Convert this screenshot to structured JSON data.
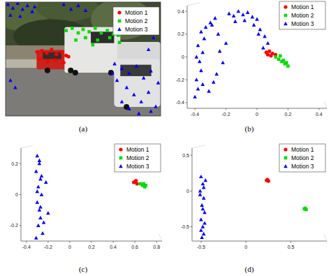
{
  "chart_data": [
    {
      "type": "scatter",
      "title": "(a)",
      "xlim": [
        0,
        640
      ],
      "ylim": [
        480,
        0
      ],
      "tick_labels": false,
      "legend": "top-right",
      "series": [
        {
          "name": "Motion 1",
          "color": "#ff0000",
          "marker": "circle",
          "x": [
            130,
            150,
            170,
            190,
            210,
            230,
            250,
            140,
            175,
            205,
            240,
            260
          ],
          "values": [
            210,
            205,
            215,
            200,
            220,
            210,
            225,
            240,
            250,
            245,
            255,
            230
          ]
        },
        {
          "name": "Motion 2",
          "color": "#00dd00",
          "marker": "square",
          "x": [
            250,
            275,
            300,
            320,
            345,
            370,
            395,
            420,
            445,
            465,
            290,
            330,
            380,
            430,
            470,
            360
          ],
          "values": [
            120,
            110,
            130,
            115,
            125,
            110,
            130,
            120,
            135,
            140,
            160,
            150,
            160,
            150,
            170,
            180
          ]
        },
        {
          "name": "Motion 3",
          "color": "#0000ff",
          "marker": "triangle",
          "x": [
            10,
            30,
            50,
            70,
            90,
            110,
            20,
            60,
            120,
            240,
            270,
            300,
            330,
            610,
            590,
            450,
            480,
            510,
            540,
            570,
            600,
            630,
            460,
            500,
            530,
            560,
            590,
            620,
            480,
            510,
            550,
            600,
            440,
            20,
            40
          ],
          "values": [
            10,
            25,
            5,
            30,
            15,
            40,
            55,
            60,
            20,
            10,
            30,
            15,
            35,
            150,
            200,
            260,
            280,
            300,
            270,
            320,
            290,
            340,
            330,
            360,
            390,
            420,
            380,
            440,
            420,
            450,
            470,
            460,
            300,
            330,
            360
          ]
        }
      ]
    },
    {
      "type": "scatter",
      "title": "(b)",
      "xlim": [
        -0.45,
        0.45
      ],
      "ylim": [
        -0.45,
        0.45
      ],
      "legend": "top-right",
      "xticks": [
        -0.4,
        -0.2,
        0,
        0.2,
        0.4
      ],
      "yticks": [
        -0.4,
        -0.2,
        0,
        0.2,
        0.4
      ],
      "series": [
        {
          "name": "Motion 1",
          "color": "#ff0000",
          "marker": "circle",
          "x": [
            0.06,
            0.08,
            0.1,
            0.12,
            0.09,
            0.07
          ],
          "values": [
            0.04,
            0.05,
            0.03,
            0.02,
            0.01,
            0.02
          ]
        },
        {
          "name": "Motion 2",
          "color": "#00dd00",
          "marker": "square",
          "x": [
            0.12,
            0.14,
            0.16,
            0.18,
            0.2,
            0.15,
            0.17,
            0.19
          ],
          "values": [
            0.0,
            -0.02,
            -0.04,
            -0.06,
            -0.08,
            0.01,
            -0.03,
            -0.05
          ]
        },
        {
          "name": "Motion 3",
          "color": "#0000ff",
          "marker": "triangle",
          "x": [
            -0.4,
            -0.38,
            -0.39,
            -0.36,
            -0.37,
            -0.35,
            -0.38,
            -0.34,
            -0.36,
            -0.33,
            -0.39,
            -0.35,
            -0.3,
            -0.27,
            -0.24,
            -0.22,
            -0.26,
            -0.2,
            -0.18,
            -0.15,
            -0.12,
            -0.09,
            -0.06,
            -0.03,
            0.0,
            -0.14,
            -0.08,
            -0.02,
            0.02,
            0.05,
            0.07,
            0.04,
            0.01,
            -0.31,
            -0.28,
            -0.25,
            -0.29
          ],
          "values": [
            -0.35,
            -0.28,
            -0.2,
            -0.12,
            -0.04,
            0.04,
            0.1,
            0.16,
            0.22,
            0.26,
            0.0,
            -0.24,
            0.3,
            0.34,
            0.05,
            -0.05,
            -0.15,
            0.12,
            0.38,
            0.36,
            0.4,
            0.37,
            0.39,
            0.35,
            0.33,
            0.31,
            0.32,
            0.28,
            0.24,
            0.18,
            0.12,
            0.08,
            0.2,
            -0.3,
            -0.22,
            0.2,
            0.28
          ]
        }
      ]
    },
    {
      "type": "scatter",
      "title": "(c)",
      "xlim": [
        -0.45,
        0.85
      ],
      "ylim": [
        -0.3,
        0.3
      ],
      "legend": "top-right",
      "xticks": [
        -0.4,
        -0.2,
        0,
        0.2,
        0.4,
        0.6,
        0.8
      ],
      "yticks": [
        -0.2,
        0,
        0.2
      ],
      "series": [
        {
          "name": "Motion 1",
          "color": "#ff0000",
          "marker": "circle",
          "x": [
            0.59,
            0.61,
            0.62,
            0.6
          ],
          "values": [
            0.08,
            0.09,
            0.07,
            0.08
          ]
        },
        {
          "name": "Motion 2",
          "color": "#00dd00",
          "marker": "square",
          "x": [
            0.65,
            0.67,
            0.69,
            0.7,
            0.68
          ],
          "values": [
            0.07,
            0.06,
            0.05,
            0.06,
            0.07
          ]
        },
        {
          "name": "Motion 3",
          "color": "#0000ff",
          "marker": "triangle",
          "x": [
            -0.3,
            -0.28,
            -0.31,
            -0.27,
            -0.29,
            -0.26,
            -0.3,
            -0.28,
            -0.27,
            -0.29,
            -0.25,
            -0.31,
            -0.28,
            -0.26,
            -0.3,
            -0.27,
            -0.24,
            -0.2,
            -0.22
          ],
          "values": [
            0.25,
            0.2,
            0.15,
            0.1,
            0.05,
            0.0,
            -0.05,
            -0.1,
            -0.15,
            -0.2,
            -0.25,
            -0.28,
            0.22,
            0.12,
            0.02,
            -0.08,
            -0.18,
            -0.12,
            0.08
          ]
        }
      ]
    },
    {
      "type": "scatter",
      "title": "(d)",
      "xlim": [
        -0.6,
        0.9
      ],
      "ylim": [
        -0.7,
        0.6
      ],
      "legend": "top-right",
      "xticks": [
        -0.5,
        0,
        0.5
      ],
      "yticks": [
        -0.5,
        0,
        0.5
      ],
      "series": [
        {
          "name": "Motion 1",
          "color": "#ff0000",
          "marker": "circle",
          "x": [
            0.23,
            0.24,
            0.25
          ],
          "values": [
            0.15,
            0.16,
            0.14
          ]
        },
        {
          "name": "Motion 2",
          "color": "#00dd00",
          "marker": "square",
          "x": [
            0.65,
            0.66,
            0.67
          ],
          "values": [
            -0.25,
            -0.24,
            -0.26
          ]
        },
        {
          "name": "Motion 3",
          "color": "#0000ff",
          "marker": "triangle",
          "x": [
            -0.5,
            -0.48,
            -0.51,
            -0.47,
            -0.49,
            -0.46,
            -0.5,
            -0.48,
            -0.47,
            -0.49,
            -0.45,
            -0.51,
            -0.48,
            -0.46,
            -0.5,
            -0.47
          ],
          "values": [
            0.2,
            0.1,
            0.0,
            -0.1,
            -0.2,
            -0.3,
            -0.4,
            -0.5,
            -0.6,
            -0.65,
            0.15,
            -0.05,
            -0.25,
            -0.45,
            -0.55,
            0.05
          ]
        }
      ]
    }
  ]
}
